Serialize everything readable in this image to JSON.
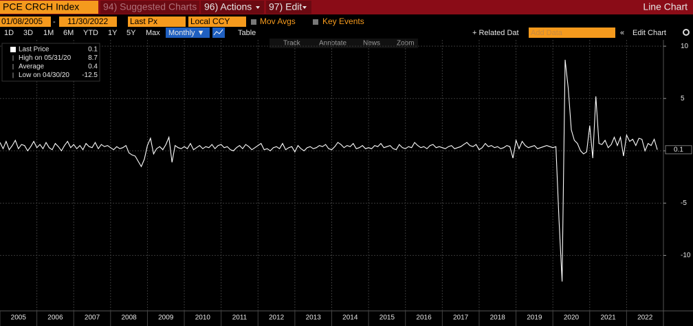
{
  "toolbar": {
    "security": "PCE CRCH Index",
    "menus": [
      "94) Suggested Charts",
      "96) Actions",
      "97) Edit"
    ],
    "view": "Line Chart",
    "start_date": "01/08/2005",
    "end_date": "11/30/2022",
    "field": "Last Px",
    "currency": "Local CCY",
    "options": [
      "Mov Avgs",
      "Key Events"
    ],
    "ranges": [
      "1D",
      "3D",
      "1M",
      "6M",
      "YTD",
      "1Y",
      "5Y",
      "Max"
    ],
    "frequency": "Monthly ▼",
    "table": "Table",
    "related": "+ Related Dat",
    "add_data": "Add Data",
    "edit_chart": "Edit Chart",
    "tools": [
      "Track",
      "Annotate",
      "News",
      "Zoom"
    ]
  },
  "legend": [
    {
      "label": "Last Price",
      "value": "0.1"
    },
    {
      "label": "High on 05/31/20",
      "value": "8.7"
    },
    {
      "label": "Average",
      "value": "0.4"
    },
    {
      "label": "Low on 04/30/20",
      "value": "-12.5"
    }
  ],
  "chart_data": {
    "type": "line",
    "color": "#ffffff",
    "grid": true,
    "ylim": [
      -15.3,
      10.6
    ],
    "yticks": [
      -10,
      -5,
      0,
      5,
      10
    ],
    "xlim": [
      2005,
      2023
    ],
    "xticks": [
      2005,
      2006,
      2007,
      2008,
      2009,
      2010,
      2011,
      2012,
      2013,
      2014,
      2015,
      2016,
      2017,
      2018,
      2019,
      2020,
      2021,
      2022
    ],
    "last_label": "0.1",
    "series": [
      {
        "name": "Last Price",
        "color": "#ffffff",
        "values": [
          0.8,
          0.2,
          0.9,
          0.1,
          0.5,
          1.0,
          0.2,
          0.6,
          0.5,
          0.0,
          0.4,
          0.9,
          0.3,
          0.6,
          0.2,
          0.8,
          0.3,
          0.1,
          0.7,
          0.4,
          0.0,
          0.5,
          0.9,
          0.3,
          0.6,
          0.2,
          0.5,
          0.1,
          0.7,
          0.4,
          0.3,
          0.8,
          0.2,
          0.6,
          0.4,
          0.5,
          0.3,
          0.1,
          0.4,
          0.2,
          0.3,
          0.5,
          -0.2,
          -0.4,
          -0.5,
          -1.0,
          -1.5,
          -0.8,
          0.5,
          1.2,
          -0.3,
          0.2,
          0.4,
          0.1,
          0.6,
          1.3,
          -1.1,
          0.5,
          0.3,
          0.2,
          0.4,
          0.2,
          0.7,
          0.1,
          0.3,
          0.5,
          0.2,
          0.4,
          0.3,
          0.6,
          0.2,
          0.5,
          0.6,
          0.3,
          0.4,
          0.1,
          0.0,
          0.3,
          0.5,
          0.2,
          0.6,
          0.4,
          0.1,
          0.3,
          0.5,
          0.7,
          0.1,
          0.2,
          0.0,
          0.3,
          0.4,
          0.2,
          0.7,
          0.1,
          0.3,
          0.4,
          -0.1,
          0.5,
          0.2,
          0.0,
          0.3,
          0.4,
          0.2,
          0.3,
          0.5,
          0.4,
          0.6,
          0.2,
          0.1,
          0.4,
          0.8,
          0.6,
          0.3,
          0.5,
          0.4,
          0.7,
          0.2,
          0.3,
          0.5,
          0.2,
          0.3,
          0.2,
          0.5,
          0.4,
          0.7,
          0.3,
          0.4,
          0.5,
          0.2,
          0.1,
          0.6,
          0.3,
          0.2,
          0.4,
          0.3,
          0.8,
          0.5,
          0.3,
          0.4,
          0.2,
          0.5,
          0.6,
          0.3,
          0.4,
          0.3,
          0.2,
          0.4,
          0.5,
          0.2,
          0.3,
          0.4,
          0.6,
          0.8,
          0.5,
          0.4,
          0.6,
          0.1,
          0.3,
          0.7,
          0.4,
          0.5,
          0.3,
          0.4,
          0.2,
          0.3,
          0.5,
          0.4,
          -0.7,
          1.0,
          0.2,
          0.9,
          0.5,
          0.3,
          0.4,
          0.5,
          0.2,
          0.3,
          0.4,
          0.5,
          0.4,
          0.3,
          0.4,
          -6.6,
          -12.5,
          8.7,
          6.0,
          2.0,
          1.0,
          0.7,
          0.0,
          -0.3,
          -0.1,
          2.4,
          -0.7,
          5.2,
          0.7,
          0.6,
          1.0,
          0.3,
          0.6,
          1.3,
          0.5,
          1.3,
          -0.5,
          1.5,
          0.9,
          1.1,
          0.5,
          1.2,
          1.1,
          0.0,
          0.7,
          0.5,
          1.1,
          0.1
        ]
      }
    ]
  }
}
